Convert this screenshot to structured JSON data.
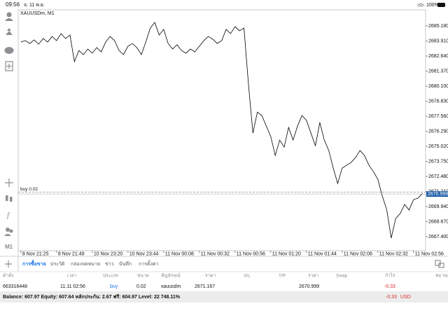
{
  "status_bar": {
    "time": "09:56",
    "date": "จ. 11 พ.ย.",
    "battery": "100%"
  },
  "chart_data": {
    "type": "line",
    "title": "XAUUSDm, M1",
    "color": "#000000",
    "x": [
      1,
      2,
      3,
      4,
      5,
      6,
      7,
      8,
      9,
      10,
      11,
      12,
      13,
      14,
      15,
      16,
      17,
      18,
      19,
      20,
      21,
      22,
      23,
      24,
      25,
      26,
      27,
      28,
      29,
      30,
      31,
      32,
      33,
      34,
      35,
      36,
      37,
      38,
      39,
      40,
      41,
      42,
      43,
      44,
      45,
      46,
      47,
      48,
      49,
      50,
      51,
      52,
      53,
      54,
      55,
      56,
      57,
      58,
      59,
      60,
      61,
      62,
      63,
      64,
      65,
      66,
      67,
      68,
      69,
      70,
      71,
      72,
      73,
      74,
      75,
      76,
      77,
      78,
      79,
      80,
      81,
      82,
      83,
      84,
      85,
      86,
      87,
      88,
      89,
      90,
      91
    ],
    "values": [
      2683.82,
      2683.94,
      2683.7,
      2684.0,
      2683.64,
      2684.12,
      2683.82,
      2684.29,
      2683.94,
      2684.53,
      2684.12,
      2684.41,
      2682.17,
      2683.11,
      2682.76,
      2683.23,
      2682.88,
      2683.35,
      2682.99,
      2683.82,
      2684.29,
      2683.94,
      2683.11,
      2682.76,
      2683.47,
      2683.7,
      2683.35,
      2682.76,
      2683.82,
      2685.0,
      2685.48,
      2684.41,
      2684.89,
      2683.7,
      2683.23,
      2683.59,
      2683.11,
      2682.88,
      2683.23,
      2682.99,
      2683.47,
      2683.94,
      2684.29,
      2684.06,
      2683.7,
      2683.94,
      2684.89,
      2684.53,
      2685.12,
      2684.77,
      2685.0,
      2680.28,
      2676.14,
      2677.91,
      2677.62,
      2676.73,
      2675.85,
      2674.25,
      2675.55,
      2674.96,
      2676.62,
      2675.55,
      2676.73,
      2677.62,
      2677.21,
      2676.14,
      2675.08,
      2677.03,
      2675.55,
      2674.67,
      2673.19,
      2671.89,
      2673.19,
      2673.43,
      2673.66,
      2674.08,
      2674.67,
      2674.25,
      2673.43,
      2672.89,
      2672.24,
      2670.83,
      2669.65,
      2667.28,
      2668.94,
      2669.35,
      2670.12,
      2669.65,
      2670.53,
      2670.65,
      2671.06
    ],
    "xlim": [
      0.4,
      91.7
    ],
    "xticks": [
      {
        "value": 1,
        "label": "8 Nov 21:25"
      },
      {
        "value": 9,
        "label": "8 Nov 21:49"
      },
      {
        "value": 17,
        "label": "10 Nov 23:20"
      },
      {
        "value": 25,
        "label": "10 Nov 23:44"
      },
      {
        "value": 33,
        "label": "11 Nov 00:08"
      },
      {
        "value": 41,
        "label": "11 Nov 00:32"
      },
      {
        "value": 49,
        "label": "11 Nov 00:56"
      },
      {
        "value": 57,
        "label": "11 Nov 01:20"
      },
      {
        "value": 65,
        "label": "11 Nov 01:44"
      },
      {
        "value": 73,
        "label": "11 Nov 02:08"
      },
      {
        "value": 81,
        "label": "11 Nov 02:32"
      },
      {
        "value": 89,
        "label": "11 Nov 02:56"
      }
    ],
    "ylim": [
      2666.22,
      2686.54
    ],
    "yticks": [
      {
        "value": 2685.18,
        "label": "2685.180"
      },
      {
        "value": 2683.91,
        "label": "2683.910"
      },
      {
        "value": 2682.64,
        "label": "2682.640"
      },
      {
        "value": 2681.37,
        "label": "2681.370"
      },
      {
        "value": 2680.1,
        "label": "2680.100"
      },
      {
        "value": 2678.83,
        "label": "2678.830"
      },
      {
        "value": 2677.56,
        "label": "2677.560"
      },
      {
        "value": 2676.29,
        "label": "2676.290"
      },
      {
        "value": 2675.02,
        "label": "2675.020"
      },
      {
        "value": 2673.75,
        "label": "2673.750"
      },
      {
        "value": 2672.48,
        "label": "2672.480"
      },
      {
        "value": 2671.21,
        "label": "2671.210"
      },
      {
        "value": 2669.94,
        "label": "2669.940"
      },
      {
        "value": 2668.67,
        "label": "2668.670"
      },
      {
        "value": 2667.4,
        "label": "2667.400"
      }
    ],
    "grid": false,
    "bid": 2670.999,
    "order_line": {
      "label": "buy 0.02",
      "value": 2671.167
    }
  },
  "timeframe": "M1",
  "tabs": [
    "การซื้อขาย",
    "ประวัติ",
    "กล่องจดหมาย",
    "ข่าว",
    "บันทึก",
    "การตั้งค่า"
  ],
  "active_tab": 0,
  "table": {
    "header": [
      "คำสั่ง",
      "เวลา",
      "ประเภท",
      "ขนาด",
      "สัญลักษณ์",
      "ราคา",
      "S/L",
      "T/P",
      "ราคา",
      "Swap",
      "กำไร",
      "หมายเหตุ"
    ],
    "rows": [
      [
        "663316448",
        "11.11 02:56",
        "buy",
        "0.02",
        "xauusdm",
        "2671.167",
        "",
        "",
        "2670.999",
        "",
        "-0.33",
        ""
      ]
    ]
  },
  "balance": {
    "summary": "Balance: 607.97 Equity: 607.64 หลักประกัน: 2.67 ฟรี: 604.97 Level: 22 748.11%",
    "profit": "-0.33",
    "currency": "USD"
  }
}
